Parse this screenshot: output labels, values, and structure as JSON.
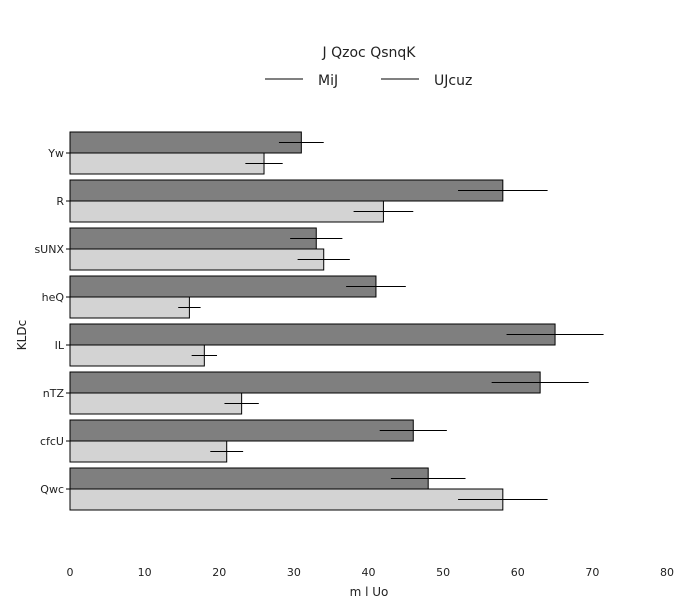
{
  "chart_data": {
    "type": "bar",
    "orientation": "horizontal",
    "title": "J Qzoc QsnqK",
    "xlabel": "m l Uo",
    "ylabel": "KLDc",
    "categories": [
      "Yw",
      "R",
      "sUNX",
      "heQ",
      "IL",
      "nTZ",
      "cfcU",
      "Qwc"
    ],
    "series": [
      {
        "name": "MiJ",
        "color": "#7f7f7f",
        "values": [
          31,
          58,
          33,
          41,
          65,
          63,
          46,
          48
        ],
        "errors": [
          3,
          6,
          3.5,
          4,
          6.5,
          6.5,
          4.5,
          5
        ]
      },
      {
        "name": "UJcuz",
        "color": "#d3d3d3",
        "values": [
          26,
          42,
          34,
          16,
          18,
          23,
          21,
          58
        ],
        "errors": [
          2.5,
          4,
          3.5,
          1.5,
          1.7,
          2.3,
          2.2,
          6
        ]
      }
    ],
    "xlim": [
      0,
      80
    ],
    "xticks": [
      "0",
      "10",
      "20",
      "30",
      "40",
      "50",
      "60",
      "70",
      "80"
    ],
    "grid": false,
    "legend_position": "top"
  }
}
